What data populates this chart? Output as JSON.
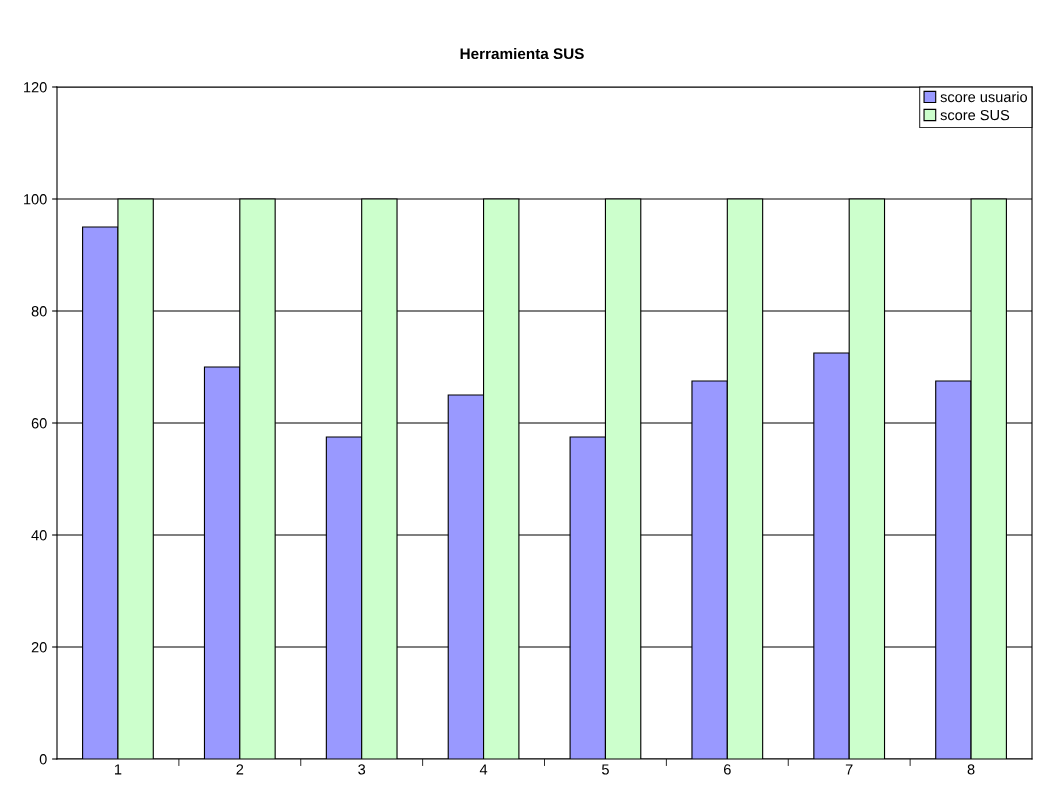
{
  "chart_data": {
    "type": "bar",
    "title": "Herramienta SUS",
    "categories": [
      "1",
      "2",
      "3",
      "4",
      "5",
      "6",
      "7",
      "8"
    ],
    "series": [
      {
        "name": "score usuario",
        "color": "#9999ff",
        "values": [
          95,
          70,
          57.5,
          65,
          57.5,
          67.5,
          72.5,
          67.5
        ]
      },
      {
        "name": "score SUS",
        "color": "#ccffcc",
        "values": [
          100,
          100,
          100,
          100,
          100,
          100,
          100,
          100
        ]
      }
    ],
    "ylim": [
      0,
      120
    ],
    "yticks": [
      0,
      20,
      40,
      60,
      80,
      100,
      120
    ],
    "grid": "y",
    "legend": "top right"
  }
}
